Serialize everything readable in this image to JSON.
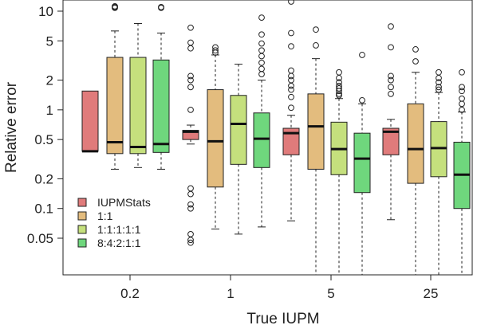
{
  "chart_data": {
    "type": "boxplot",
    "xlabel": "True IUPM",
    "ylabel": "Relative error",
    "y_scale": "log",
    "ylim": [
      0.02,
      12
    ],
    "y_ticks": [
      {
        "value": 10,
        "label": "10"
      },
      {
        "value": 5,
        "label": "5"
      },
      {
        "value": 2,
        "label": "2"
      },
      {
        "value": 1,
        "label": "1"
      },
      {
        "value": 0.5,
        "label": "0.5"
      },
      {
        "value": 0.2,
        "label": "0.2"
      },
      {
        "value": 0.1,
        "label": "0.1"
      },
      {
        "value": 0.05,
        "label": "0.05"
      }
    ],
    "categories": [
      "0.2",
      "1",
      "5",
      "25"
    ],
    "legend_position": "bottom-left",
    "series": [
      {
        "name": "IUPMStats",
        "color": "#e07b7b",
        "boxes": [
          {
            "whislo": 0.38,
            "q1": 0.38,
            "med": 0.38,
            "q3": 1.55,
            "whishi": 1.55,
            "fliers": []
          },
          {
            "whislo": 0.45,
            "q1": 0.5,
            "med": 0.6,
            "q3": 0.62,
            "whishi": 0.7,
            "fliers": [
              6.8,
              4.8,
              4.2,
              2.2,
              2.0,
              1.7,
              1.0,
              0.16,
              0.14,
              0.11,
              0.1,
              0.055,
              0.048,
              0.045
            ]
          },
          {
            "whislo": 0.075,
            "q1": 0.35,
            "med": 0.58,
            "q3": 0.65,
            "whishi": 0.88,
            "fliers": [
              12.5,
              6.0,
              4.4,
              2.5,
              2.2,
              2.0,
              1.75,
              1.6,
              1.35,
              1.05
            ]
          },
          {
            "whislo": 0.077,
            "q1": 0.35,
            "med": 0.6,
            "q3": 0.65,
            "whishi": 0.8,
            "fliers": [
              7.0,
              4.3,
              2.2,
              2.0,
              1.7,
              1.45
            ]
          }
        ]
      },
      {
        "name": "1:1",
        "color": "#e3bc7e",
        "boxes": [
          {
            "whislo": 0.25,
            "q1": 0.36,
            "med": 0.47,
            "q3": 3.4,
            "whishi": 6.3,
            "fliers": [
              11.2,
              11.0,
              10.8
            ]
          },
          {
            "whislo": 0.062,
            "q1": 0.165,
            "med": 0.48,
            "q3": 1.6,
            "whishi": 3.6,
            "fliers": [
              4.3,
              4.0,
              3.8
            ]
          },
          {
            "whislo": 0.02,
            "q1": 0.25,
            "med": 0.68,
            "q3": 1.45,
            "whishi": 3.3,
            "fliers": [
              6.5,
              4.5
            ]
          },
          {
            "whislo": 0.02,
            "q1": 0.18,
            "med": 0.4,
            "q3": 1.15,
            "whishi": 2.4,
            "fliers": [
              4.1,
              3.1
            ]
          }
        ]
      },
      {
        "name": "1:1:1:1:1",
        "color": "#c5e07d",
        "boxes": [
          {
            "whislo": 0.26,
            "q1": 0.36,
            "med": 0.42,
            "q3": 3.4,
            "whishi": 7.5,
            "fliers": []
          },
          {
            "whislo": 0.055,
            "q1": 0.28,
            "med": 0.72,
            "q3": 1.4,
            "whishi": 2.9,
            "fliers": []
          },
          {
            "whislo": 0.02,
            "q1": 0.22,
            "med": 0.4,
            "q3": 0.75,
            "whishi": 1.3,
            "fliers": [
              2.4,
              2.1,
              1.9,
              1.75,
              1.65,
              1.55,
              1.45,
              1.4
            ]
          },
          {
            "whislo": 0.02,
            "q1": 0.21,
            "med": 0.41,
            "q3": 0.76,
            "whishi": 1.5,
            "fliers": [
              2.4,
              2.1,
              1.9,
              1.7,
              1.6
            ]
          }
        ]
      },
      {
        "name": "8:4:2:1:1",
        "color": "#6fd77d",
        "boxes": [
          {
            "whislo": 0.25,
            "q1": 0.37,
            "med": 0.45,
            "q3": 3.2,
            "whishi": 6.0,
            "fliers": [
              11.0,
              10.8
            ]
          },
          {
            "whislo": 0.065,
            "q1": 0.26,
            "med": 0.51,
            "q3": 0.93,
            "whishi": 2.0,
            "fliers": [
              8.6,
              5.8,
              4.7,
              4.0,
              3.5,
              3.0,
              2.6,
              2.3
            ]
          },
          {
            "whislo": 0.02,
            "q1": 0.145,
            "med": 0.32,
            "q3": 0.58,
            "whishi": 1.15,
            "fliers": [
              3.6,
              1.25
            ]
          },
          {
            "whislo": 0.02,
            "q1": 0.1,
            "med": 0.22,
            "q3": 0.47,
            "whishi": 0.95,
            "fliers": [
              2.4,
              1.7,
              1.55,
              1.3,
              1.15,
              1.0
            ]
          }
        ]
      }
    ]
  }
}
